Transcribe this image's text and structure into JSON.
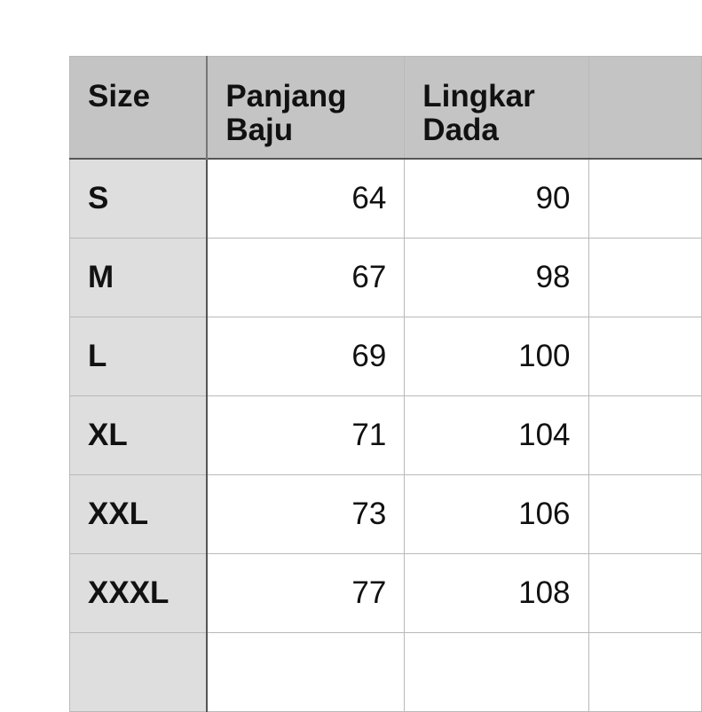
{
  "table": {
    "headers": [
      "Size",
      "Panjang Baju",
      "Lingkar Dada",
      ""
    ],
    "rows": [
      {
        "size": "S",
        "panjang_baju": "64",
        "lingkar_dada": "90"
      },
      {
        "size": "M",
        "panjang_baju": "67",
        "lingkar_dada": "98"
      },
      {
        "size": "L",
        "panjang_baju": "69",
        "lingkar_dada": "100"
      },
      {
        "size": "XL",
        "panjang_baju": "71",
        "lingkar_dada": "104"
      },
      {
        "size": "XXL",
        "panjang_baju": "73",
        "lingkar_dada": "106"
      },
      {
        "size": "XXXL",
        "panjang_baju": "77",
        "lingkar_dada": "108"
      },
      {
        "size": "",
        "panjang_baju": "",
        "lingkar_dada": ""
      }
    ]
  },
  "colors": {
    "header_bg": "#c4c4c4",
    "size_column_bg": "#dedede"
  }
}
